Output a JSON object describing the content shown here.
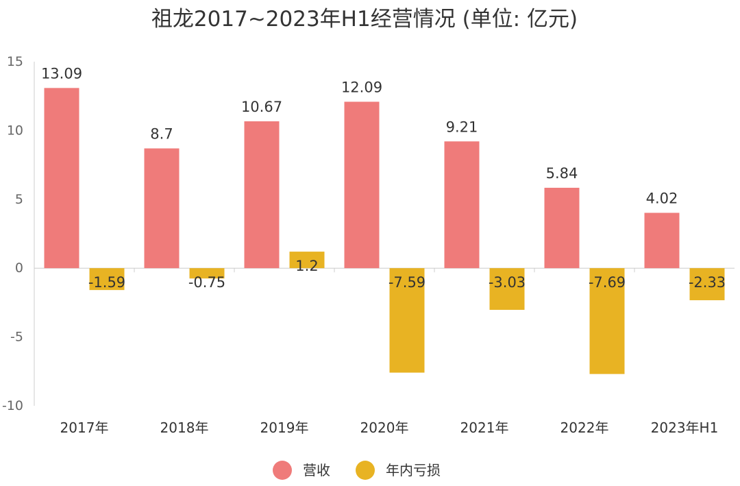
{
  "chart_data": {
    "type": "bar",
    "title": "祖龙2017~2023年H1经营情况 (单位: 亿元)",
    "categories": [
      "2017年",
      "2018年",
      "2019年",
      "2020年",
      "2021年",
      "2022年",
      "2023年H1"
    ],
    "series": [
      {
        "name": "营收",
        "values": [
          13.09,
          8.7,
          10.67,
          12.09,
          9.21,
          5.84,
          4.02
        ],
        "color": "#ef7b7a"
      },
      {
        "name": "年内亏损",
        "values": [
          -1.59,
          -0.75,
          1.2,
          -7.59,
          -3.03,
          -7.69,
          -2.33
        ],
        "color": "#e8b323"
      }
    ],
    "ylim": [
      -10,
      15
    ],
    "yticks": [
      15,
      10,
      5,
      0,
      -5,
      -10
    ],
    "data_labels": {
      "营收": [
        "13.09",
        "8.7",
        "10.67",
        "12.09",
        "9.21",
        "5.84",
        "4.02"
      ],
      "年内亏损": [
        "-1.59",
        "-0.75",
        "1.2",
        "-7.59",
        "-3.03",
        "-7.69",
        "-2.33"
      ]
    },
    "legend_position": "bottom",
    "grid": false
  }
}
